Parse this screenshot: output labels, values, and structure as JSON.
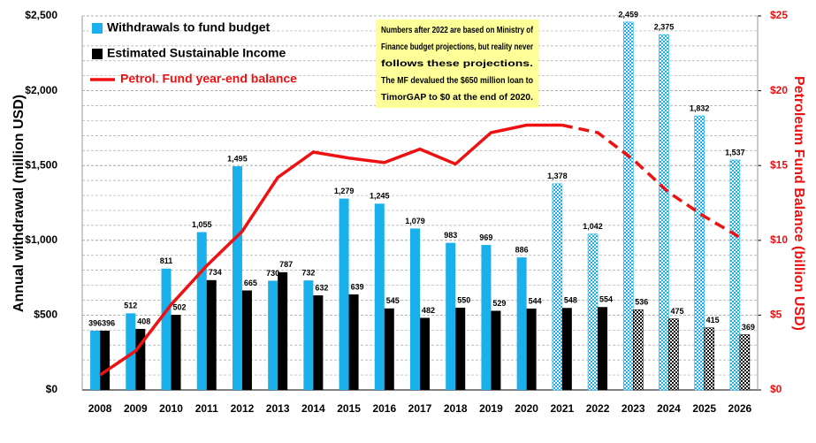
{
  "chart_data": {
    "type": "bar_line",
    "categories": [
      "2008",
      "2009",
      "2010",
      "2011",
      "2012",
      "2013",
      "2014",
      "2015",
      "2016",
      "2017",
      "2018",
      "2019",
      "2020",
      "2021",
      "2022",
      "2023",
      "2024",
      "2025",
      "2026"
    ],
    "series": [
      {
        "name": "Withdrawals to fund budget",
        "color": "#1ab0ec",
        "type": "bar",
        "pattern_start": 13,
        "values": [
          396,
          512,
          811,
          1055,
          1495,
          730,
          732,
          1279,
          1245,
          1079,
          983,
          969,
          886,
          1378,
          1042,
          2459,
          2375,
          1832,
          1537
        ],
        "value_labels": [
          "396",
          "512",
          "811",
          "1,055",
          "1,495",
          "730",
          "732",
          "1,279",
          "1,245",
          "1,079",
          "983",
          "969",
          "886",
          "1,378",
          "1,042",
          "2,459",
          "2,375",
          "1,832",
          "1,537"
        ]
      },
      {
        "name": "Estimated Sustainable Income",
        "color": "#000000",
        "type": "bar",
        "pattern_start": 15,
        "values": [
          396,
          408,
          502,
          734,
          665,
          787,
          632,
          639,
          545,
          482,
          550,
          529,
          544,
          548,
          554,
          536,
          475,
          415,
          369
        ]
      },
      {
        "name": "Petrol. Fund year-end balance",
        "color": "#ee1111",
        "type": "line",
        "axis": "y2",
        "dash_start": 13,
        "values": [
          1.0,
          2.6,
          5.7,
          8.3,
          10.6,
          14.2,
          15.9,
          15.5,
          15.2,
          16.1,
          15.1,
          17.2,
          17.7,
          17.7,
          17.2,
          15.4,
          13.2,
          11.6,
          10.2
        ]
      }
    ],
    "ylabel": "Annual withdrawal (million USD)",
    "y2label": "Petroleum Fund Balance (billion USD)",
    "ylim": [
      0,
      2500
    ],
    "yticks": [
      {
        "value": 0,
        "label": "$0"
      },
      {
        "value": 500,
        "label": "$500"
      },
      {
        "value": 1000,
        "label": "$1,000"
      },
      {
        "value": 1500,
        "label": "$1,500"
      },
      {
        "value": 2000,
        "label": "$2,000"
      },
      {
        "value": 2500,
        "label": "$2,500"
      }
    ],
    "y2lim": [
      0,
      25
    ],
    "y2ticks": [
      {
        "value": 0,
        "label": "$0"
      },
      {
        "value": 5,
        "label": "$5"
      },
      {
        "value": 10,
        "label": "$10"
      },
      {
        "value": 15,
        "label": "$15"
      },
      {
        "value": 20,
        "label": "$20"
      },
      {
        "value": 25,
        "label": "$25"
      }
    ],
    "annotation": [
      "Numbers after 2022 are based on Ministry of",
      "Finance budget projections, but reality never",
      "follows these projections.",
      "The MF devalued the $650 million loan to",
      "TimorGAP to $0 at the end of 2020."
    ],
    "grid": true,
    "legend": "upper left"
  }
}
